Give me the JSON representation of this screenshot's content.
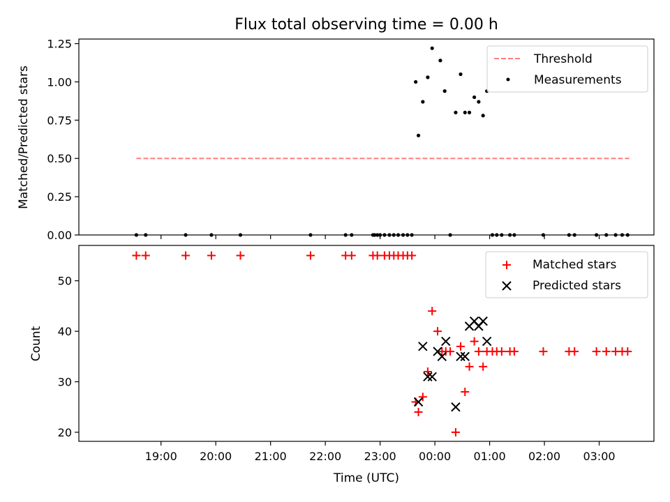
{
  "title": "Flux total observing time = 0.00 h",
  "chart_data": [
    {
      "type": "scatter",
      "ylabel": "Matched/Predicted stars",
      "ylim": [
        0,
        1.28
      ],
      "yticks": [
        "0.00",
        "0.25",
        "0.50",
        "0.75",
        "1.00",
        "1.25"
      ],
      "grid": false,
      "legend": {
        "placement": "top-right",
        "entries": [
          "Threshold",
          "Measurements"
        ]
      },
      "series": [
        {
          "name": "Threshold",
          "style": "dashed-line",
          "color": "#ff7f7f",
          "x": [
            18.55,
            3.55
          ],
          "y": [
            0.5,
            0.5
          ]
        },
        {
          "name": "Measurements",
          "style": "dot",
          "color": "#000000",
          "x": [
            18.55,
            18.72,
            19.45,
            19.92,
            20.45,
            21.73,
            22.37,
            22.48,
            22.87,
            22.9,
            22.95,
            23.0,
            23.08,
            23.17,
            23.25,
            23.33,
            23.42,
            23.5,
            23.58,
            23.65,
            23.7,
            23.78,
            23.87,
            23.95,
            0.1,
            0.18,
            0.28,
            0.38,
            0.47,
            0.55,
            0.63,
            0.72,
            0.8,
            0.88,
            0.95,
            1.05,
            1.13,
            1.22,
            1.37,
            1.45,
            1.98,
            2.45,
            2.55,
            2.95,
            3.13,
            3.3,
            3.42,
            3.52
          ],
          "y": [
            0.0,
            0.0,
            0.0,
            0.0,
            0.0,
            0.0,
            0.0,
            0.0,
            0.0,
            0.0,
            0.0,
            0.0,
            0.0,
            0.0,
            0.0,
            0.0,
            0.0,
            0.0,
            0.0,
            1.0,
            0.65,
            0.87,
            1.03,
            1.22,
            1.14,
            0.94,
            0.0,
            0.8,
            1.05,
            0.8,
            0.8,
            0.9,
            0.87,
            0.78,
            0.94,
            0.0,
            0.0,
            0.0,
            0.0,
            0.0,
            0.0,
            0.0,
            0.0,
            0.0,
            0.0,
            0.0,
            0.0,
            0.0
          ]
        }
      ]
    },
    {
      "type": "scatter",
      "xlabel": "Time (UTC)",
      "ylabel": "Count",
      "ylim": [
        18.2,
        57
      ],
      "yticks": [
        "20",
        "30",
        "40",
        "50"
      ],
      "xticks": [
        "19:00",
        "20:00",
        "21:00",
        "22:00",
        "23:00",
        "00:00",
        "01:00",
        "02:00",
        "03:00"
      ],
      "grid": false,
      "legend": {
        "placement": "top-right",
        "entries": [
          "Matched stars",
          "Predicted stars"
        ]
      },
      "series": [
        {
          "name": "Matched stars",
          "style": "plus",
          "color": "#ff0000",
          "x": [
            18.55,
            18.72,
            19.45,
            19.92,
            20.45,
            21.73,
            22.37,
            22.48,
            22.87,
            22.95,
            23.08,
            23.17,
            23.25,
            23.33,
            23.42,
            23.5,
            23.58,
            23.65,
            23.7,
            23.78,
            23.87,
            23.95,
            0.05,
            0.13,
            0.2,
            0.28,
            0.38,
            0.47,
            0.55,
            0.63,
            0.72,
            0.8,
            0.88,
            0.95,
            1.05,
            1.13,
            1.22,
            1.37,
            1.45,
            1.98,
            2.45,
            2.55,
            2.95,
            3.13,
            3.3,
            3.42,
            3.52
          ],
          "y": [
            55,
            55,
            55,
            55,
            55,
            55,
            55,
            55,
            55,
            55,
            55,
            55,
            55,
            55,
            55,
            55,
            55,
            26,
            24,
            27,
            32,
            44,
            40,
            36,
            36,
            36,
            20,
            37,
            28,
            33,
            38,
            36,
            33,
            36,
            36,
            36,
            36,
            36,
            36,
            36,
            36,
            36,
            36,
            36,
            36,
            36,
            36
          ]
        },
        {
          "name": "Predicted stars",
          "style": "x",
          "color": "#000000",
          "x": [
            23.7,
            23.78,
            23.87,
            23.95,
            0.05,
            0.13,
            0.2,
            0.38,
            0.47,
            0.55,
            0.63,
            0.72,
            0.8,
            0.88,
            0.95
          ],
          "y": [
            26,
            37,
            31,
            31,
            36,
            35,
            38,
            25,
            35,
            35,
            41,
            42,
            41,
            42,
            38
          ]
        }
      ]
    }
  ]
}
